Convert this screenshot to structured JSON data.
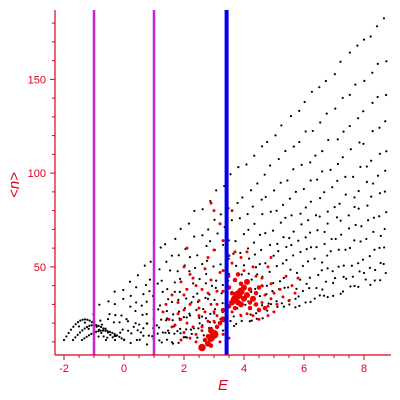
{
  "chart_data": {
    "type": "scatter",
    "title": "",
    "xlabel": "E",
    "ylabel": "<n>",
    "xlim": [
      -2.3,
      8.9
    ],
    "ylim": [
      3,
      187
    ],
    "grid": false,
    "axis_color": "#e0001a",
    "x_ticks": [
      {
        "value": -2,
        "label": "-2"
      },
      {
        "value": 0,
        "label": "0"
      },
      {
        "value": 2,
        "label": "2"
      },
      {
        "value": 4,
        "label": "4"
      },
      {
        "value": 6,
        "label": "6"
      },
      {
        "value": 8,
        "label": "8"
      }
    ],
    "y_ticks": [
      {
        "value": 50,
        "label": "50"
      },
      {
        "value": 100,
        "label": "100"
      },
      {
        "value": 150,
        "label": "150"
      }
    ],
    "vlines": [
      {
        "x": -1.0,
        "color": "#cc22cc"
      },
      {
        "x": 1.0,
        "color": "#cc22cc"
      },
      {
        "x": 3.42,
        "color": "#0000ee"
      }
    ],
    "series": [
      {
        "color": "#000000",
        "curves": [
          {
            "x0": -1.5,
            "x1": 8.7,
            "y0": 18,
            "y1": 183
          },
          {
            "x0": -1.2,
            "x1": 8.7,
            "y0": 16,
            "y1": 160
          },
          {
            "x0": -1.0,
            "x1": 8.7,
            "y0": 15,
            "y1": 142
          },
          {
            "x0": -0.8,
            "x1": 8.7,
            "y0": 14,
            "y1": 126
          },
          {
            "x0": -0.5,
            "x1": 8.7,
            "y0": 13,
            "y1": 112
          },
          {
            "x0": -0.3,
            "x1": 8.7,
            "y0": 12,
            "y1": 100
          },
          {
            "x0": 0.0,
            "x1": 8.7,
            "y0": 12,
            "y1": 90
          },
          {
            "x0": 0.2,
            "x1": 8.7,
            "y0": 11,
            "y1": 80
          },
          {
            "x0": 0.5,
            "x1": 8.7,
            "y0": 11,
            "y1": 70
          },
          {
            "x0": 0.8,
            "x1": 8.7,
            "y0": 10,
            "y1": 60
          },
          {
            "x0": 1.2,
            "x1": 8.7,
            "y0": 10,
            "y1": 52
          },
          {
            "x0": 1.6,
            "x1": 8.7,
            "y0": 10,
            "y1": 45
          }
        ],
        "arcs": [
          {
            "x0": -2.0,
            "x1": -0.6,
            "ypeak": 22
          },
          {
            "x0": -1.7,
            "x1": -0.3,
            "ypeak": 19
          },
          {
            "x0": -1.4,
            "x1": 0.0,
            "ypeak": 16
          }
        ]
      },
      {
        "color": "#ee0000",
        "points": [
          [
            2.6,
            7,
            5
          ],
          [
            2.8,
            9,
            4
          ],
          [
            2.9,
            12,
            5
          ],
          [
            3.0,
            14,
            6
          ],
          [
            2.9,
            16,
            4
          ],
          [
            3.1,
            18,
            3
          ],
          [
            3.2,
            20,
            3
          ],
          [
            3.3,
            22,
            4
          ],
          [
            3.1,
            24,
            2
          ],
          [
            3.0,
            26,
            2
          ],
          [
            3.3,
            27,
            3
          ],
          [
            2.7,
            26,
            2
          ],
          [
            2.5,
            28,
            2
          ],
          [
            3.5,
            29,
            3
          ],
          [
            3.6,
            31,
            4
          ],
          [
            3.7,
            33,
            5
          ],
          [
            3.8,
            35,
            6
          ],
          [
            3.9,
            37,
            5
          ],
          [
            4.0,
            39,
            4
          ],
          [
            3.9,
            41,
            3
          ],
          [
            3.7,
            43,
            3
          ],
          [
            4.1,
            42,
            4
          ],
          [
            4.2,
            38,
            3
          ],
          [
            3.6,
            36,
            3
          ],
          [
            4.3,
            33,
            4
          ],
          [
            4.4,
            30,
            3
          ],
          [
            4.5,
            27,
            3
          ],
          [
            4.6,
            31,
            2
          ],
          [
            4.7,
            35,
            2
          ],
          [
            4.8,
            29,
            2
          ],
          [
            4.9,
            33,
            2
          ],
          [
            5.0,
            26,
            2
          ],
          [
            3.8,
            46,
            3
          ],
          [
            4.0,
            48,
            2
          ],
          [
            3.5,
            45,
            2
          ],
          [
            3.4,
            50,
            2
          ],
          [
            3.3,
            48,
            2
          ],
          [
            3.6,
            52,
            2
          ],
          [
            4.4,
            45,
            2
          ],
          [
            4.6,
            40,
            2
          ],
          [
            4.1,
            25,
            2
          ],
          [
            3.9,
            24,
            2
          ],
          [
            2.4,
            40,
            2
          ],
          [
            2.6,
            38,
            2
          ],
          [
            2.8,
            36,
            2
          ],
          [
            2.3,
            44,
            2
          ],
          [
            2.7,
            49,
            2
          ],
          [
            2.8,
            55,
            2
          ],
          [
            3.0,
            59,
            2
          ],
          [
            3.4,
            60,
            2
          ],
          [
            3.5,
            56,
            2
          ],
          [
            3.3,
            64,
            2
          ],
          [
            3.7,
            58,
            2
          ],
          [
            3.2,
            73,
            2
          ],
          [
            3.0,
            80,
            2
          ],
          [
            2.9,
            84,
            2
          ],
          [
            3.6,
            80,
            2
          ],
          [
            2.1,
            38,
            2
          ],
          [
            2.2,
            46,
            2
          ],
          [
            2.0,
            35,
            2
          ],
          [
            1.9,
            42,
            2
          ],
          [
            2.5,
            32,
            2
          ],
          [
            2.2,
            30,
            2
          ],
          [
            2.0,
            27,
            2
          ],
          [
            1.8,
            25,
            2
          ],
          [
            1.9,
            22,
            2
          ],
          [
            2.1,
            20,
            2
          ],
          [
            2.3,
            18,
            2
          ],
          [
            2.0,
            15,
            2
          ],
          [
            2.2,
            12,
            2
          ],
          [
            2.4,
            10,
            2
          ],
          [
            1.7,
            19,
            2
          ],
          [
            1.5,
            22,
            2
          ],
          [
            1.6,
            18,
            2
          ],
          [
            1.9,
            11,
            2
          ],
          [
            1.3,
            26,
            2
          ],
          [
            4.3,
            24,
            2
          ],
          [
            4.5,
            22,
            2
          ],
          [
            4.8,
            24,
            2
          ],
          [
            5.1,
            30,
            2
          ],
          [
            5.3,
            34,
            2
          ],
          [
            5.2,
            38,
            2
          ],
          [
            4.9,
            41,
            2
          ],
          [
            5.4,
            45,
            2
          ],
          [
            5.0,
            36,
            2
          ],
          [
            5.5,
            32,
            2
          ],
          [
            4.7,
            28,
            3
          ],
          [
            4.2,
            31,
            3
          ],
          [
            3.5,
            39,
            3
          ],
          [
            3.4,
            33,
            2
          ],
          [
            3.3,
            37,
            2
          ],
          [
            4.6,
            44,
            2
          ],
          [
            4.3,
            50,
            2
          ],
          [
            3.9,
            30,
            4
          ],
          [
            4.0,
            33,
            4
          ],
          [
            4.1,
            35,
            4
          ],
          [
            3.7,
            28,
            3
          ],
          [
            3.6,
            26,
            2
          ],
          [
            3.8,
            31,
            4
          ],
          [
            4.2,
            28,
            3
          ],
          [
            4.4,
            36,
            3
          ],
          [
            4.5,
            39,
            3
          ],
          [
            3.1,
            30,
            2
          ],
          [
            2.9,
            30,
            2
          ],
          [
            2.8,
            21,
            2
          ],
          [
            2.6,
            18,
            2
          ],
          [
            2.5,
            24,
            2
          ],
          [
            3.4,
            17,
            2
          ],
          [
            3.3,
            14,
            2
          ],
          [
            3.5,
            12,
            2
          ],
          [
            3.2,
            10,
            2
          ],
          [
            3.0,
            21,
            2
          ],
          [
            2.8,
            13,
            3
          ],
          [
            2.7,
            11,
            3
          ],
          [
            2.9,
            8,
            3
          ],
          [
            2.4,
            14,
            2
          ],
          [
            2.6,
            16,
            2
          ],
          [
            3.1,
            37,
            2
          ],
          [
            2.9,
            43,
            2
          ],
          [
            3.2,
            47,
            2
          ],
          [
            5.6,
            40,
            2
          ],
          [
            5.8,
            44,
            2
          ],
          [
            5.7,
            36,
            2
          ],
          [
            4.8,
            50,
            2
          ],
          [
            4.9,
            55,
            2
          ],
          [
            3.9,
            55,
            2
          ],
          [
            4.1,
            58,
            2
          ],
          [
            2.1,
            60,
            2
          ],
          [
            1.6,
            35,
            2
          ],
          [
            1.8,
            31,
            2
          ],
          [
            1.4,
            30,
            2
          ],
          [
            2.0,
            50,
            2
          ]
        ]
      }
    ]
  }
}
